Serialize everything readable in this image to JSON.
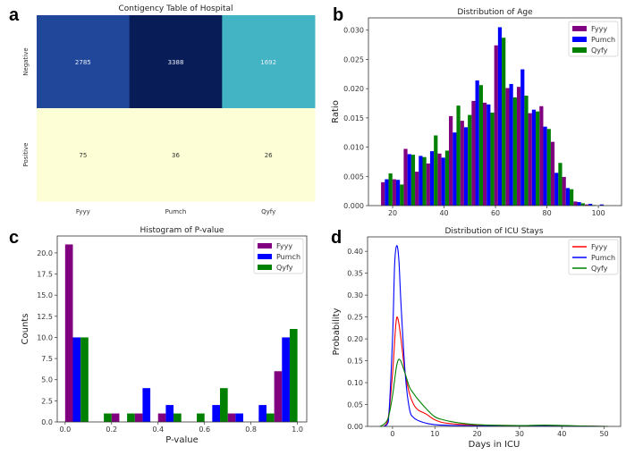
{
  "panel_labels": [
    "a",
    "b",
    "c",
    "d"
  ],
  "colors": {
    "Fyyy_bar": "#800080",
    "Pumch_bar": "#0000ff",
    "Qyfy_bar": "#008000",
    "Fyyy_line": "#ff0000",
    "Pumch_line": "#0000ff",
    "Qyfy_line": "#008000"
  },
  "chart_data": [
    {
      "type": "heatmap",
      "title": "Contigency Table of Hospital",
      "columns": [
        "Fyyy",
        "Pumch",
        "Qyfy"
      ],
      "rows": [
        "Negative",
        "Positive"
      ],
      "values": [
        [
          2785,
          3388,
          1692
        ],
        [
          75,
          36,
          26
        ]
      ],
      "cell_colors": [
        [
          "#21479b",
          "#081d58",
          "#43b4c3"
        ],
        [
          "#fdfed5",
          "#fdfed5",
          "#fdfed5"
        ]
      ]
    },
    {
      "type": "bar",
      "title": "Distribution of Age",
      "xlabel": "",
      "ylabel": "Ratio",
      "xlim": [
        10.6,
        109
      ],
      "ylim": [
        0,
        0.0321
      ],
      "xticks": [
        "20",
        "40",
        "60",
        "80",
        "100"
      ],
      "xtick_values": [
        20,
        40,
        60,
        80,
        100
      ],
      "yticks": [
        "0.000",
        "0.005",
        "0.010",
        "0.015",
        "0.020",
        "0.025",
        "0.030"
      ],
      "ytick_values": [
        0,
        0.005,
        0.01,
        0.015,
        0.02,
        0.025,
        0.03
      ],
      "bin_start": 15.5,
      "bin_width": 4.4,
      "legend": "top-right",
      "series": [
        {
          "name": "Fyyy",
          "values": [
            0.004,
            0.0045,
            0.0097,
            0.0058,
            0.0072,
            0.0089,
            0.0153,
            0.0145,
            0.0179,
            0.0176,
            0.0274,
            0.0201,
            0.0203,
            0.0158,
            0.017,
            0.0109,
            0.0049,
            0.0007,
            0.0002,
            0
          ]
        },
        {
          "name": "Pumch",
          "values": [
            0.0045,
            0.0044,
            0.0088,
            0.0085,
            0.0093,
            0.0082,
            0.0125,
            0.0134,
            0.0214,
            0.0173,
            0.0305,
            0.0208,
            0.0233,
            0.0164,
            0.0135,
            0.0056,
            0.003,
            0.0006,
            0.0003,
            0.0002
          ]
        },
        {
          "name": "Qyfy",
          "values": [
            0.0055,
            0.0036,
            0.0087,
            0.0083,
            0.012,
            0.0094,
            0.0171,
            0.0155,
            0.0206,
            0.0159,
            0.0287,
            0.0185,
            0.0188,
            0.0161,
            0.0131,
            0.0073,
            0.0028,
            0.0004,
            0.0001,
            0
          ]
        }
      ]
    },
    {
      "type": "bar",
      "title": "Histogram of P-value",
      "xlabel": "P-value",
      "ylabel": "Counts",
      "xlim": [
        -0.034,
        1.04
      ],
      "ylim": [
        0,
        22
      ],
      "xticks": [
        "0.0",
        "0.2",
        "0.4",
        "0.6",
        "0.8",
        "1.0"
      ],
      "xtick_values": [
        0,
        0.2,
        0.4,
        0.6,
        0.8,
        1.0
      ],
      "yticks": [
        "0.0",
        "2.5",
        "5.0",
        "7.5",
        "10.0",
        "12.5",
        "15.0",
        "17.5",
        "20.0"
      ],
      "ytick_values": [
        0,
        2.5,
        5,
        7.5,
        10,
        12.5,
        15,
        17.5,
        20
      ],
      "bin_start": 0,
      "bin_width": 0.1,
      "legend": "top-right",
      "series": [
        {
          "name": "Fyyy",
          "values": [
            21,
            0,
            1,
            1,
            1,
            0,
            0,
            1,
            0,
            6
          ]
        },
        {
          "name": "Pumch",
          "values": [
            10,
            0,
            0,
            4,
            2,
            0,
            2,
            1,
            2,
            10
          ]
        },
        {
          "name": "Qyfy",
          "values": [
            10,
            1,
            1,
            0,
            1,
            1,
            4,
            0,
            1,
            11
          ]
        }
      ]
    },
    {
      "type": "line",
      "title": "Distribution of ICU Stays",
      "xlabel": "Days in ICU",
      "ylabel": "Probability",
      "xlim": [
        -5.9,
        53.9
      ],
      "ylim": [
        0,
        0.433
      ],
      "xticks": [
        "0",
        "10",
        "20",
        "30",
        "40",
        "50"
      ],
      "xtick_values": [
        0,
        10,
        20,
        30,
        40,
        50
      ],
      "yticks": [
        "0.00",
        "0.05",
        "0.10",
        "0.15",
        "0.20",
        "0.25",
        "0.30",
        "0.35",
        "0.40"
      ],
      "ytick_values": [
        0,
        0.05,
        0.1,
        0.15,
        0.2,
        0.25,
        0.3,
        0.35,
        0.4
      ],
      "legend": "top-right",
      "series": [
        {
          "name": "Fyyy",
          "points": [
            [
              -2,
              0
            ],
            [
              -1,
              0.02
            ],
            [
              0,
              0.12
            ],
            [
              0.8,
              0.235
            ],
            [
              1.3,
              0.245
            ],
            [
              2,
              0.2
            ],
            [
              3,
              0.12
            ],
            [
              4,
              0.075
            ],
            [
              5,
              0.05
            ],
            [
              6,
              0.038
            ],
            [
              8,
              0.028
            ],
            [
              10,
              0.015
            ],
            [
              13,
              0.007
            ],
            [
              20,
              0.003
            ],
            [
              30,
              0.002
            ],
            [
              40,
              0.001
            ],
            [
              51,
              0
            ]
          ]
        },
        {
          "name": "Pumch",
          "points": [
            [
              -2,
              0
            ],
            [
              -1,
              0.01
            ],
            [
              0,
              0.2
            ],
            [
              0.5,
              0.37
            ],
            [
              1,
              0.413
            ],
            [
              1.5,
              0.38
            ],
            [
              2,
              0.28
            ],
            [
              3,
              0.12
            ],
            [
              4,
              0.04
            ],
            [
              5,
              0.02
            ],
            [
              7,
              0.01
            ],
            [
              10,
              0.004
            ],
            [
              15,
              0.002
            ],
            [
              20,
              0.001
            ],
            [
              30,
              0.001
            ],
            [
              50,
              0
            ]
          ]
        },
        {
          "name": "Qyfy",
          "points": [
            [
              -3,
              0
            ],
            [
              -2,
              0.005
            ],
            [
              -1,
              0.02
            ],
            [
              0,
              0.07
            ],
            [
              1,
              0.14
            ],
            [
              1.8,
              0.152
            ],
            [
              3,
              0.12
            ],
            [
              4,
              0.09
            ],
            [
              5,
              0.075
            ],
            [
              6,
              0.062
            ],
            [
              8,
              0.04
            ],
            [
              10,
              0.022
            ],
            [
              12,
              0.015
            ],
            [
              15,
              0.009
            ],
            [
              20,
              0.004
            ],
            [
              30,
              0.002
            ],
            [
              36,
              0.003
            ],
            [
              45,
              0.001
            ],
            [
              51,
              0
            ]
          ]
        }
      ]
    }
  ]
}
